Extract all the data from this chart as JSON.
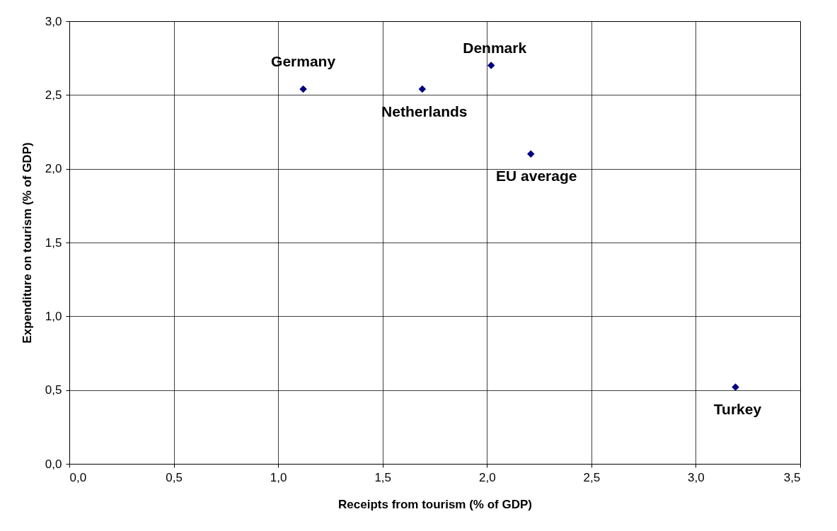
{
  "chart_data": {
    "type": "scatter",
    "xlabel": "Receipts from tourism (% of GDP)",
    "ylabel": "Expenditure on tourism (% of GDP)",
    "series": [
      {
        "name": "Germany",
        "color": "#000080",
        "x": [
          1.12
        ],
        "values": [
          2.54
        ]
      },
      {
        "name": "Netherlands",
        "color": "#000080",
        "x": [
          1.69
        ],
        "values": [
          2.54
        ]
      },
      {
        "name": "Denmark",
        "color": "#000080",
        "x": [
          2.02
        ],
        "values": [
          2.7
        ]
      },
      {
        "name": "EU average",
        "color": "#000080",
        "x": [
          2.21
        ],
        "values": [
          2.1
        ]
      },
      {
        "name": "Turkey",
        "color": "#000080",
        "x": [
          3.19
        ],
        "values": [
          0.52
        ]
      }
    ],
    "xlim": [
      0,
      3.5
    ],
    "ylim": [
      0,
      3
    ],
    "xticks": [
      {
        "value": 0,
        "label": "0,0"
      },
      {
        "value": 0.5,
        "label": "0,5"
      },
      {
        "value": 1,
        "label": "1,0"
      },
      {
        "value": 1.5,
        "label": "1,5"
      },
      {
        "value": 2,
        "label": "2,0"
      },
      {
        "value": 2.5,
        "label": "2,5"
      },
      {
        "value": 3,
        "label": "3,0"
      },
      {
        "value": 3.5,
        "label": "3,5"
      }
    ],
    "yticks": [
      {
        "value": 0,
        "label": "0,0"
      },
      {
        "value": 0.5,
        "label": "0,5"
      },
      {
        "value": 1,
        "label": "1,0"
      },
      {
        "value": 1.5,
        "label": "1,5"
      },
      {
        "value": 2,
        "label": "2,0"
      },
      {
        "value": 2.5,
        "label": "2,5"
      },
      {
        "value": 3,
        "label": "3,0"
      }
    ],
    "grid": true,
    "marker": "diamond",
    "legend": false
  }
}
